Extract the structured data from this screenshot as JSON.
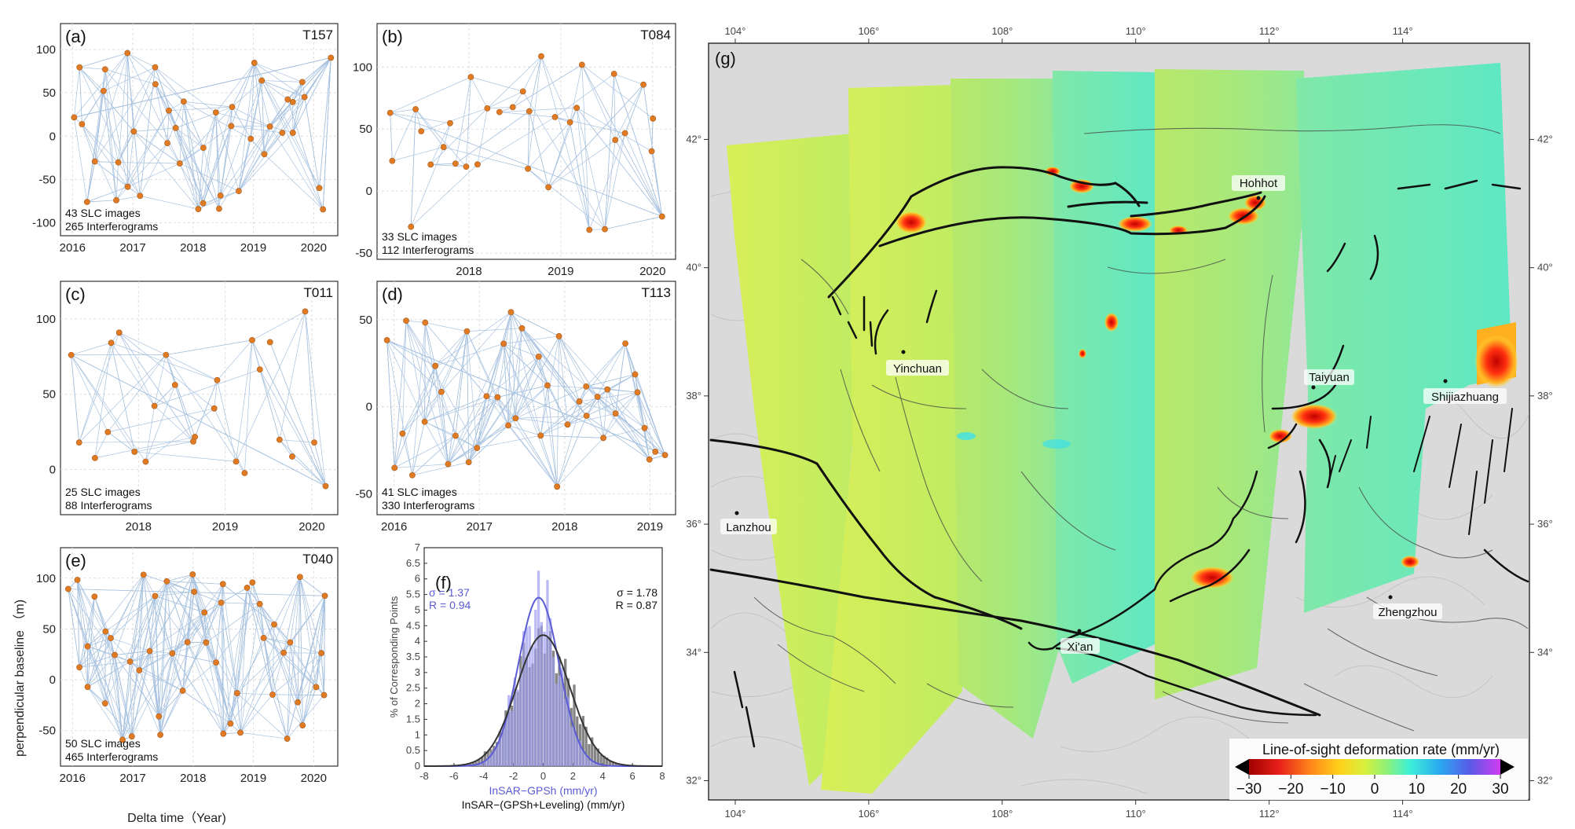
{
  "chart_data": [
    {
      "id": "a",
      "type": "scatter",
      "panel_label": "(a)",
      "track": "T157",
      "note_lines": [
        "43 SLC images",
        "265 Interferograms"
      ],
      "xticks": [
        "2016",
        "2017",
        "2018",
        "2019",
        "2020"
      ],
      "xlim": [
        2015.8,
        2020.4
      ],
      "yticks": [
        "-100",
        "-50",
        "0",
        "50",
        "100"
      ],
      "ylim": [
        -115,
        130
      ],
      "n_images": 43,
      "n_interferograms": 265
    },
    {
      "id": "b",
      "type": "scatter",
      "panel_label": "(b)",
      "track": "T084",
      "note_lines": [
        "33 SLC images",
        "112 Interferograms"
      ],
      "xticks": [
        "2018",
        "2019",
        "2020"
      ],
      "xlim": [
        2017.0,
        2020.25
      ],
      "yticks": [
        "-50",
        "0",
        "50",
        "100"
      ],
      "ylim": [
        -55,
        135
      ],
      "n_images": 33,
      "n_interferograms": 112
    },
    {
      "id": "c",
      "type": "scatter",
      "panel_label": "(c)",
      "track": "T011",
      "note_lines": [
        "25 SLC images",
        "88 Interferograms"
      ],
      "xticks": [
        "2018",
        "2019",
        "2020"
      ],
      "xlim": [
        2017.1,
        2020.3
      ],
      "yticks": [
        "0",
        "50",
        "100"
      ],
      "ylim": [
        -30,
        125
      ],
      "n_images": 25,
      "n_interferograms": 88
    },
    {
      "id": "d",
      "type": "scatter",
      "panel_label": "(d)",
      "track": "T113",
      "note_lines": [
        "41 SLC images",
        "330 Interferograms"
      ],
      "xticks": [
        "2016",
        "2017",
        "2018",
        "2019"
      ],
      "xlim": [
        2015.8,
        2019.3
      ],
      "yticks": [
        "-50",
        "0",
        "50"
      ],
      "ylim": [
        -62,
        72
      ],
      "n_images": 41,
      "n_interferograms": 330
    },
    {
      "id": "e",
      "type": "scatter",
      "panel_label": "(e)",
      "track": "T040",
      "note_lines": [
        "50 SLC images",
        "465 Interferograms"
      ],
      "xticks": [
        "2016",
        "2017",
        "2018",
        "2019",
        "2020"
      ],
      "xlim": [
        2015.8,
        2020.4
      ],
      "yticks": [
        "-50",
        "0",
        "50",
        "100"
      ],
      "ylim": [
        -85,
        130
      ],
      "n_images": 50,
      "n_interferograms": 465,
      "xlabel": "Delta time（Year)",
      "ylabel": "perpendicular baseline （m)"
    },
    {
      "id": "f",
      "type": "bar",
      "panel_label": "(f)",
      "xlabel_colored": "InSAR−GPSh  (mm/yr)",
      "xlabel": "InSAR−(GPSh+Leveling)  (mm/yr)",
      "ylabel": "% of Corresponding Points",
      "xticks": [
        "-8",
        "-6",
        "-4",
        "-2",
        "0",
        "2",
        "4",
        "6",
        "8"
      ],
      "xlim": [
        -8,
        8
      ],
      "yticks": [
        "0",
        "0.5",
        "1",
        "1.5",
        "2",
        "2.5",
        "3",
        "3.5",
        "4",
        "4.5",
        "5",
        "5.5",
        "6",
        "6.5",
        "7"
      ],
      "ylim": [
        0,
        7
      ],
      "series": [
        {
          "name": "InSAR−GPSh",
          "color": "#5b5bd6",
          "stats": [
            "σ = 1.37",
            "R = 0.94"
          ],
          "sigma": 1.37,
          "R": 0.94,
          "mean": -0.3,
          "peak": 5.4
        },
        {
          "name": "InSAR−(GPSh+Leveling)",
          "color": "#333333",
          "stats": [
            "σ = 1.78",
            "R = 0.87"
          ],
          "sigma": 1.78,
          "R": 0.87,
          "mean": 0.0,
          "peak": 4.2
        }
      ]
    },
    {
      "id": "g",
      "type": "heatmap",
      "panel_label": "(g)",
      "lon_ticks": [
        "104°",
        "106°",
        "108°",
        "110°",
        "112°",
        "114°"
      ],
      "lat_ticks": [
        "32°",
        "34°",
        "36°",
        "38°",
        "40°",
        "42°"
      ],
      "cities": [
        "Hohhot",
        "Yinchuan",
        "Taiyuan",
        "Shijiazhuang",
        "Lanzhou",
        "Zhengzhou",
        "Xi'an"
      ],
      "colorbar": {
        "title": "Line-of-sight deformation rate (mm/yr)",
        "ticks": [
          "−30",
          "−20",
          "−10",
          "0",
          "10",
          "20",
          "30"
        ],
        "range": [
          -30,
          30
        ]
      }
    }
  ],
  "colors": {
    "baseline_line": "#7aa2cf",
    "scene_dot": "#e07b24",
    "gpsh_bar": "#9c9cf0",
    "comb_bar": "#6e6e6e"
  }
}
